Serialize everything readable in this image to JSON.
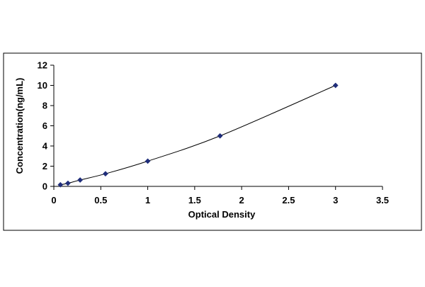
{
  "chart_data": {
    "type": "scatter",
    "title": "",
    "xlabel": "Optical Density",
    "ylabel": "Concentration(ng/mL)",
    "xlim": [
      0,
      3.5
    ],
    "ylim": [
      0,
      12
    ],
    "x_ticks": [
      "0",
      "0.5",
      "1",
      "1.5",
      "2",
      "2.5",
      "3",
      "3.5"
    ],
    "y_ticks": [
      "0",
      "2",
      "4",
      "6",
      "8",
      "10",
      "12"
    ],
    "grid": false,
    "legend": "none",
    "series": [
      {
        "x": [
          0.07,
          0.15,
          0.28,
          0.55,
          1.0,
          1.77,
          3.0
        ],
        "y": [
          0.16,
          0.31,
          0.63,
          1.25,
          2.5,
          5.0,
          10.0
        ],
        "marker": "diamond",
        "color": "#1f2d7a",
        "trendline": "smooth curve through points"
      }
    ]
  }
}
